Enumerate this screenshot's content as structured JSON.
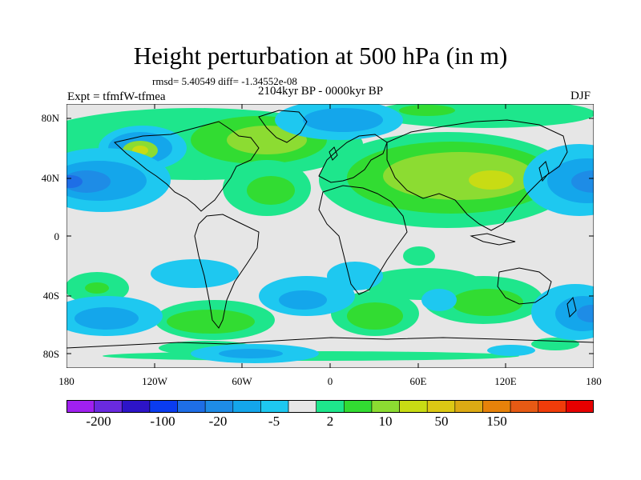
{
  "title": "Height perturbation at 500 hPa (in m)",
  "rmsd_text": "rmsd= 5.40549  diff= -1.34552e-08",
  "period": "2104kyr BP - 0000kyr BP",
  "experiment": "Expt = tfmfW-tfmea",
  "season": "DJF",
  "map": {
    "lon_labels": [
      "180",
      "120W",
      "60W",
      "0",
      "60E",
      "120E",
      "180"
    ],
    "lat_labels": [
      "80N",
      "40N",
      "0",
      "40S",
      "80S"
    ],
    "background_color": "#e6e6e6",
    "coast_color": "#000000"
  },
  "colorbar": {
    "colors": [
      "#a020f0",
      "#6a2adf",
      "#2d14c8",
      "#0a3cf0",
      "#1e6ee6",
      "#1e8ce6",
      "#14a6eb",
      "#1ec8f0",
      "#e6e6e6",
      "#1ee68c",
      "#32dc32",
      "#8cdc32",
      "#c8dc14",
      "#dcc814",
      "#dcaa14",
      "#e6820a",
      "#e65a14",
      "#f03c0a",
      "#e60000"
    ],
    "labels": [
      "-200",
      "-100",
      "-20",
      "-5",
      "2",
      "10",
      "50",
      "150"
    ]
  }
}
